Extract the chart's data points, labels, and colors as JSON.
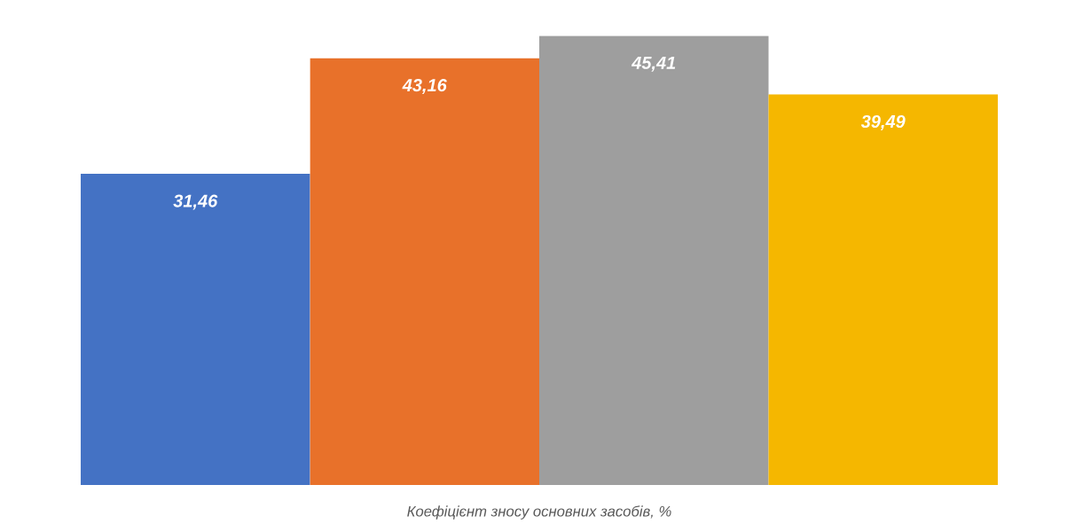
{
  "chart_data": {
    "type": "bar",
    "xlabel": "Коефіцієнт зносу основних засобів, %",
    "categories": [
      null,
      null,
      null,
      null
    ],
    "values": [
      31.46,
      43.16,
      45.41,
      39.49
    ],
    "colors": [
      "#4472c4",
      "#e8712a",
      "#9e9e9e",
      "#f5b700"
    ],
    "value_labels": [
      "31,46",
      "43,16",
      "45,41",
      "39,49"
    ]
  }
}
